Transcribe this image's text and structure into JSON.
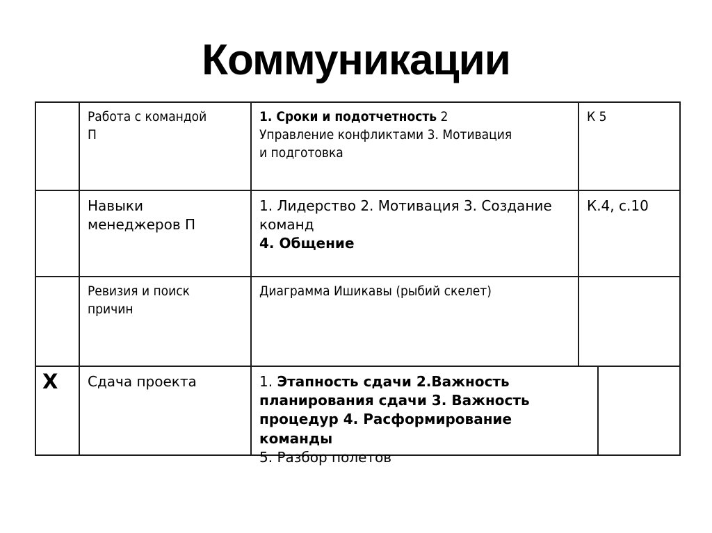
{
  "title": "Коммуникации",
  "colors": {
    "background": "#ffffff",
    "text": "#000000",
    "table_border": "#1b1b1b"
  },
  "table": {
    "rows": [
      {
        "mark": "",
        "topic": "Работа с командой\nП",
        "content": [
          {
            "t": "1. Сроки и подотчетность",
            "b": true
          },
          {
            "t": " 2\nУправление конфликтами 3. Мотивация\nи подготовка"
          }
        ],
        "ref": "К 5"
      },
      {
        "mark": "",
        "topic": "Навыки\nменеджеров П",
        "content": [
          {
            "t": "1. Лидерство 2. Мотивация 3. Создание\nкоманд\n"
          },
          {
            "t": "4. Общение",
            "b": true
          }
        ],
        "ref": "К.4, с.10"
      },
      {
        "mark": "",
        "topic": "Ревизия и поиск\nпричин",
        "content": [
          {
            "t": "Диаграмма Ишикавы (рыбий скелет)"
          }
        ],
        "ref": ""
      },
      {
        "mark": "X",
        "topic": "Сдача проекта",
        "content": [
          {
            "t": "1. "
          },
          {
            "t": "Этапность сдачи 2.Важность\nпланирования сдачи 3. Важность\nпроцедур 4. Расформирование команды",
            "b": true
          },
          {
            "t": "\n5. Разбор полетов"
          }
        ],
        "ref": ""
      }
    ]
  }
}
